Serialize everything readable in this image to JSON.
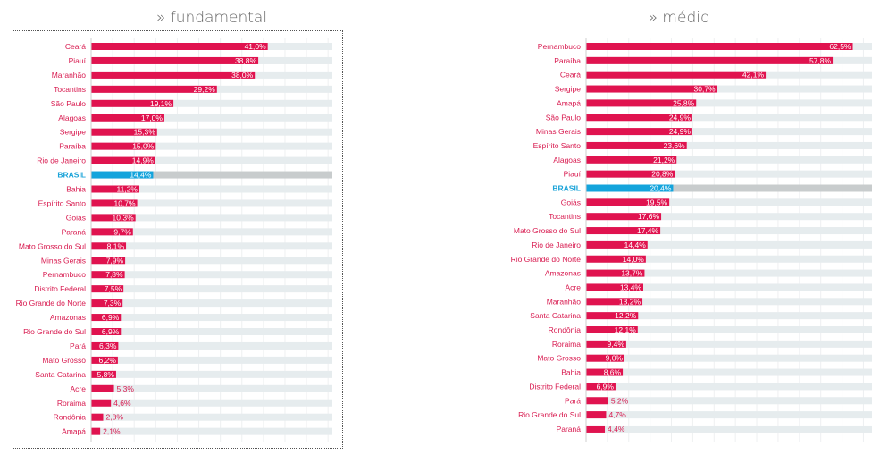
{
  "colors": {
    "bar": "#e0134f",
    "highlight": "#14a4dc",
    "track": "#e6ecee",
    "highlight_track": "#c8cccd",
    "grid": "#eef0f1",
    "axis": "#cfcfcf"
  },
  "chart_data": [
    {
      "type": "bar",
      "orientation": "horizontal",
      "title": "» fundamental",
      "xlabel": "",
      "ylabel": "",
      "xlim": [
        0,
        56
      ],
      "grid": true,
      "highlight_category": "BRASIL",
      "categories": [
        "Ceará",
        "Piauí",
        "Maranhão",
        "Tocantins",
        "São Paulo",
        "Alagoas",
        "Sergipe",
        "Paraíba",
        "Rio de Janeiro",
        "BRASIL",
        "Bahia",
        "Espírito Santo",
        "Goiás",
        "Paraná",
        "Mato Grosso do Sul",
        "Minas Gerais",
        "Pernambuco",
        "Distrito Federal",
        "Rio Grande do Norte",
        "Amazonas",
        "Rio Grande do Sul",
        "Pará",
        "Mato Grosso",
        "Santa Catarina",
        "Acre",
        "Roraima",
        "Rondônia",
        "Amapá"
      ],
      "values": [
        41.0,
        38.8,
        38.0,
        29.2,
        19.1,
        17.0,
        15.3,
        15.0,
        14.9,
        14.4,
        11.2,
        10.7,
        10.3,
        9.7,
        8.1,
        7.9,
        7.8,
        7.5,
        7.3,
        6.9,
        6.9,
        6.3,
        6.2,
        5.8,
        5.3,
        4.6,
        2.8,
        2.1
      ],
      "labels": [
        "41,0%",
        "38,8%",
        "38,0%",
        "29,2%",
        "19,1%",
        "17,0%",
        "15,3%",
        "15,0%",
        "14,9%",
        "14,4%",
        "11,2%",
        "10,7%",
        "10,3%",
        "9,7%",
        "8,1%",
        "7,9%",
        "7,8%",
        "7,5%",
        "7,3%",
        "6,9%",
        "6,9%",
        "6,3%",
        "6,2%",
        "5,8%",
        "5,3%",
        "4,6%",
        "2,8%",
        "2,1%"
      ]
    },
    {
      "type": "bar",
      "orientation": "horizontal",
      "title": "» médio",
      "xlabel": "",
      "ylabel": "",
      "xlim": [
        0,
        67
      ],
      "grid": true,
      "highlight_category": "BRASIL",
      "categories": [
        "Pernambuco",
        "Paraíba",
        "Ceará",
        "Sergipe",
        "Amapá",
        "São Paulo",
        "Minas Gerais",
        "Espírito Santo",
        "Alagoas",
        "Piauí",
        "BRASIL",
        "Goiás",
        "Tocantins",
        "Mato Grosso do Sul",
        "Rio de Janeiro",
        "Rio Grande do Norte",
        "Amazonas",
        "Acre",
        "Maranhão",
        "Santa Catarina",
        "Rondônia",
        "Roraima",
        "Mato Grosso",
        "Bahia",
        "Distrito Federal",
        "Pará",
        "Rio Grande do Sul",
        "Paraná"
      ],
      "values": [
        62.5,
        57.8,
        42.1,
        30.7,
        25.8,
        24.9,
        24.9,
        23.6,
        21.2,
        20.8,
        20.4,
        19.5,
        17.6,
        17.4,
        14.4,
        14.0,
        13.7,
        13.4,
        13.2,
        12.2,
        12.1,
        9.4,
        9.0,
        8.6,
        6.9,
        5.2,
        4.7,
        4.4
      ],
      "labels": [
        "62,5%",
        "57,8%",
        "42,1%",
        "30,7%",
        "25,8%",
        "24,9%",
        "24,9%",
        "23,6%",
        "21,2%",
        "20,8%",
        "20,4%",
        "19,5%",
        "17,6%",
        "17,4%",
        "14,4%",
        "14,0%",
        "13,7%",
        "13,4%",
        "13,2%",
        "12,2%",
        "12,1%",
        "9,4%",
        "9,0%",
        "8,6%",
        "6,9%",
        "5,2%",
        "4,7%",
        "4,4%"
      ]
    }
  ]
}
